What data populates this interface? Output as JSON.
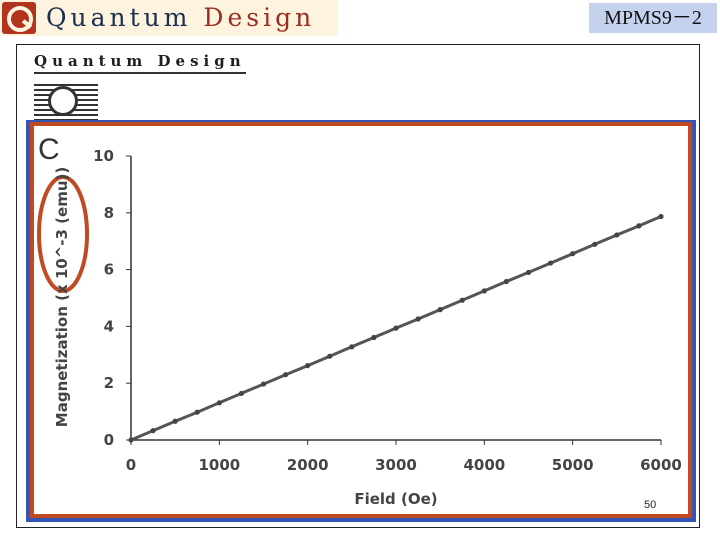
{
  "header": {
    "logo_word1": "Quantum",
    "logo_word2": "Design",
    "title": "MPMS9－2"
  },
  "slide": {
    "inner_logo": "Quantum Design",
    "panel_letter": "C",
    "page_number": "50"
  },
  "colors": {
    "accent_red": "#bf4a24",
    "accent_blue": "#3555b5",
    "title_box": "#c4d2ee",
    "data_line": "#555555"
  },
  "chart_data": {
    "type": "line",
    "title": "",
    "xlabel": "Field (Oe)",
    "ylabel": "Magnetization (x 10^-3 (emu))",
    "xlim": [
      0,
      6000
    ],
    "ylim": [
      0,
      10
    ],
    "xticks": [
      0,
      1000,
      2000,
      3000,
      4000,
      5000,
      6000
    ],
    "yticks": [
      0,
      2,
      4,
      6,
      8,
      10
    ],
    "grid": false,
    "series": [
      {
        "x": [
          0,
          250,
          500,
          750,
          1000,
          1250,
          1500,
          1750,
          2000,
          2250,
          2500,
          2750,
          3000,
          3250,
          3500,
          3750,
          4000,
          4250,
          4500,
          4750,
          5000,
          5250,
          5500,
          5750,
          6000
        ],
        "values": [
          0.0,
          0.33,
          0.66,
          0.98,
          1.31,
          1.64,
          1.97,
          2.3,
          2.62,
          2.95,
          3.28,
          3.61,
          3.94,
          4.26,
          4.59,
          4.92,
          5.25,
          5.58,
          5.9,
          6.23,
          6.56,
          6.89,
          7.22,
          7.54,
          7.87
        ]
      }
    ]
  }
}
